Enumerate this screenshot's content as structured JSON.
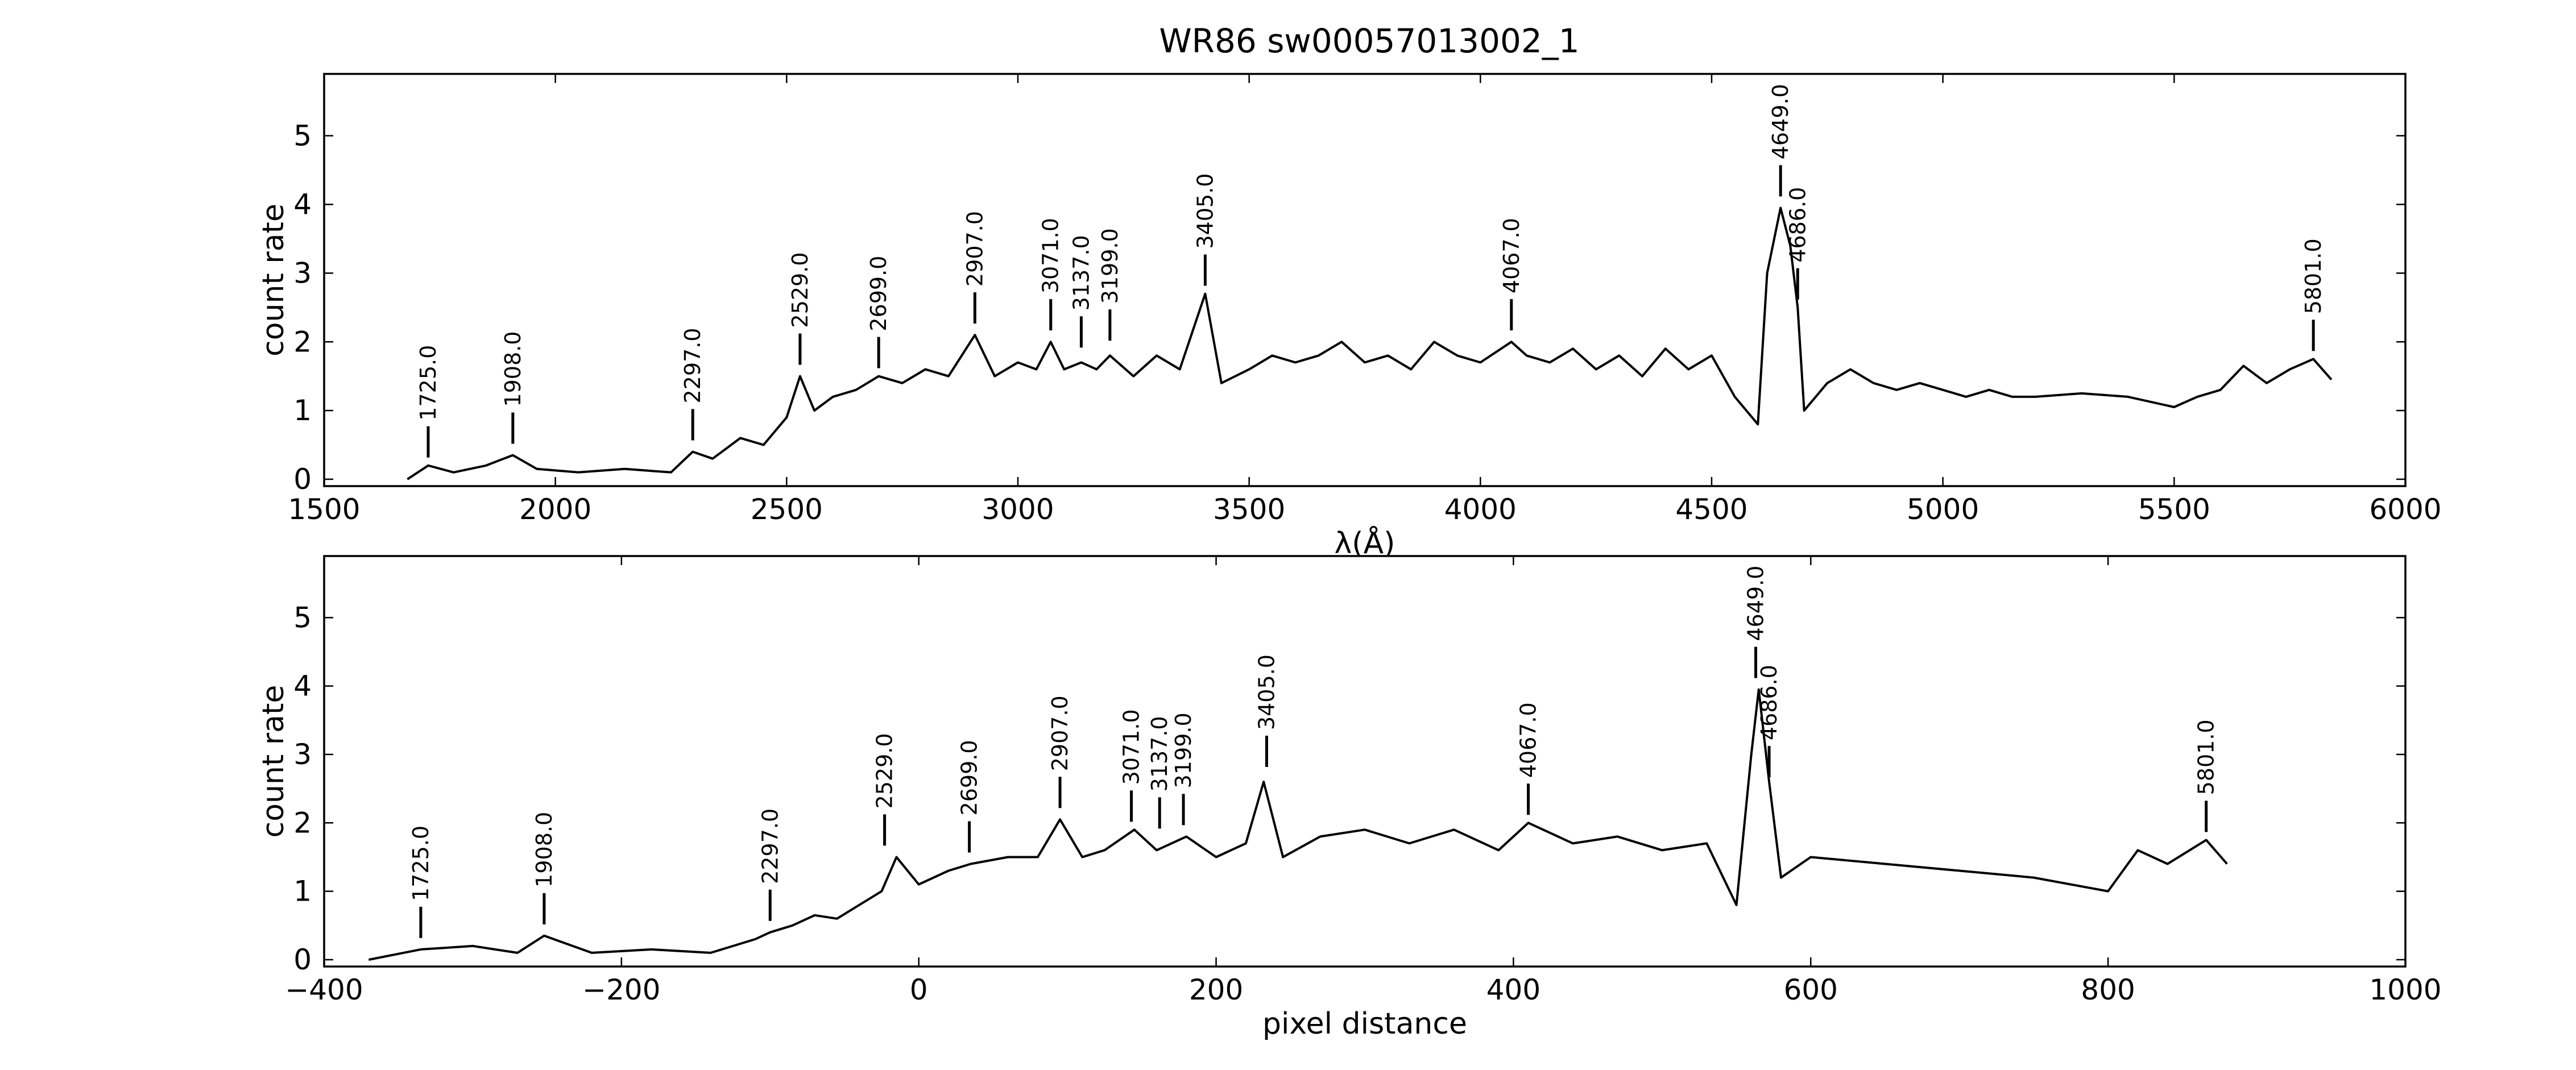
{
  "figure": {
    "title": "WR86  sw00057013002_1"
  },
  "chart_data": [
    {
      "type": "line",
      "panel": "top",
      "xlabel": "λ(Å)",
      "ylabel": "count rate",
      "xlim": [
        1500,
        6000
      ],
      "ylim": [
        -0.1,
        5.9
      ],
      "xticks": [
        1500,
        2000,
        2500,
        3000,
        3500,
        4000,
        4500,
        5000,
        5500,
        6000
      ],
      "yticks": [
        0,
        1,
        2,
        3,
        4,
        5
      ],
      "x": [
        1680,
        1725,
        1780,
        1850,
        1908,
        1960,
        2050,
        2150,
        2250,
        2297,
        2340,
        2400,
        2450,
        2500,
        2529,
        2560,
        2600,
        2650,
        2699,
        2750,
        2800,
        2850,
        2907,
        2950,
        3000,
        3040,
        3071,
        3100,
        3137,
        3170,
        3199,
        3250,
        3300,
        3350,
        3405,
        3440,
        3500,
        3550,
        3600,
        3650,
        3700,
        3750,
        3800,
        3850,
        3900,
        3950,
        4000,
        4067,
        4100,
        4150,
        4200,
        4250,
        4300,
        4350,
        4400,
        4450,
        4500,
        4550,
        4600,
        4620,
        4649,
        4670,
        4686,
        4700,
        4750,
        4800,
        4850,
        4900,
        4950,
        5000,
        5050,
        5100,
        5150,
        5200,
        5300,
        5400,
        5500,
        5550,
        5600,
        5650,
        5700,
        5750,
        5801,
        5840
      ],
      "y": [
        0.0,
        0.2,
        0.1,
        0.2,
        0.35,
        0.15,
        0.1,
        0.15,
        0.1,
        0.4,
        0.3,
        0.6,
        0.5,
        0.9,
        1.5,
        1.0,
        1.2,
        1.3,
        1.5,
        1.4,
        1.6,
        1.5,
        2.1,
        1.5,
        1.7,
        1.6,
        2.0,
        1.6,
        1.7,
        1.6,
        1.8,
        1.5,
        1.8,
        1.6,
        2.7,
        1.4,
        1.6,
        1.8,
        1.7,
        1.8,
        2.0,
        1.7,
        1.8,
        1.6,
        2.0,
        1.8,
        1.7,
        2.0,
        1.8,
        1.7,
        1.9,
        1.6,
        1.8,
        1.5,
        1.9,
        1.6,
        1.8,
        1.2,
        0.8,
        3.0,
        3.95,
        3.4,
        2.5,
        1.0,
        1.4,
        1.6,
        1.4,
        1.3,
        1.4,
        1.3,
        1.2,
        1.3,
        1.2,
        1.2,
        1.25,
        1.2,
        1.05,
        1.2,
        1.3,
        1.65,
        1.4,
        1.6,
        1.75,
        1.45
      ],
      "annotations": [
        {
          "label": "1725.0",
          "x": 1725,
          "y": 0.25
        },
        {
          "label": "1908.0",
          "x": 1908,
          "y": 0.45
        },
        {
          "label": "2297.0",
          "x": 2297,
          "y": 0.5
        },
        {
          "label": "2529.0",
          "x": 2529,
          "y": 1.6
        },
        {
          "label": "2699.0",
          "x": 2699,
          "y": 1.55
        },
        {
          "label": "2907.0",
          "x": 2907,
          "y": 2.2
        },
        {
          "label": "3071.0",
          "x": 3071,
          "y": 2.1
        },
        {
          "label": "3137.0",
          "x": 3137,
          "y": 1.85
        },
        {
          "label": "3199.0",
          "x": 3199,
          "y": 1.95
        },
        {
          "label": "3405.0",
          "x": 3405,
          "y": 2.75
        },
        {
          "label": "4067.0",
          "x": 4067,
          "y": 2.1
        },
        {
          "label": "4649.0",
          "x": 4649,
          "y": 4.05
        },
        {
          "label": "4686.0",
          "x": 4686,
          "y": 2.55
        },
        {
          "label": "5801.0",
          "x": 5801,
          "y": 1.8
        }
      ]
    },
    {
      "type": "line",
      "panel": "bottom",
      "xlabel": "pixel distance",
      "ylabel": "count rate",
      "xlim": [
        -400,
        1000
      ],
      "ylim": [
        -0.1,
        5.9
      ],
      "xticks": [
        -400,
        -200,
        0,
        200,
        400,
        600,
        800,
        1000
      ],
      "xticklabels": [
        "−400",
        "−200",
        "0",
        "200",
        "400",
        "600",
        "800",
        "1000"
      ],
      "yticks": [
        0,
        1,
        2,
        3,
        4,
        5
      ],
      "x": [
        -370,
        -335,
        -300,
        -270,
        -252,
        -220,
        -180,
        -140,
        -110,
        -100,
        -85,
        -70,
        -55,
        -40,
        -25,
        -15,
        0,
        20,
        35,
        60,
        80,
        95,
        110,
        125,
        145,
        160,
        180,
        200,
        220,
        232,
        245,
        270,
        300,
        330,
        360,
        390,
        410,
        440,
        470,
        500,
        530,
        550,
        560,
        565,
        572,
        580,
        600,
        650,
        700,
        750,
        800,
        820,
        840,
        866,
        880
      ],
      "y": [
        0.0,
        0.15,
        0.2,
        0.1,
        0.35,
        0.1,
        0.15,
        0.1,
        0.3,
        0.4,
        0.5,
        0.65,
        0.6,
        0.8,
        1.0,
        1.5,
        1.1,
        1.3,
        1.4,
        1.5,
        1.5,
        2.05,
        1.5,
        1.6,
        1.9,
        1.6,
        1.8,
        1.5,
        1.7,
        2.6,
        1.5,
        1.8,
        1.9,
        1.7,
        1.9,
        1.6,
        2.0,
        1.7,
        1.8,
        1.6,
        1.7,
        0.8,
        3.0,
        3.95,
        2.6,
        1.2,
        1.5,
        1.4,
        1.3,
        1.2,
        1.0,
        1.6,
        1.4,
        1.75,
        1.4
      ],
      "annotations": [
        {
          "label": "1725.0",
          "x": -335,
          "y": 0.25
        },
        {
          "label": "1908.0",
          "x": -252,
          "y": 0.45
        },
        {
          "label": "2297.0",
          "x": -100,
          "y": 0.5
        },
        {
          "label": "2529.0",
          "x": -23,
          "y": 1.6
        },
        {
          "label": "2699.0",
          "x": 34,
          "y": 1.5
        },
        {
          "label": "2907.0",
          "x": 95,
          "y": 2.15
        },
        {
          "label": "3071.0",
          "x": 143,
          "y": 1.95
        },
        {
          "label": "3137.0",
          "x": 162,
          "y": 1.85
        },
        {
          "label": "3199.0",
          "x": 178,
          "y": 1.9
        },
        {
          "label": "3405.0",
          "x": 234,
          "y": 2.75
        },
        {
          "label": "4067.0",
          "x": 410,
          "y": 2.05
        },
        {
          "label": "4649.0",
          "x": 563,
          "y": 4.05
        },
        {
          "label": "4686.0",
          "x": 572,
          "y": 2.6
        },
        {
          "label": "5801.0",
          "x": 866,
          "y": 1.8
        }
      ]
    }
  ]
}
